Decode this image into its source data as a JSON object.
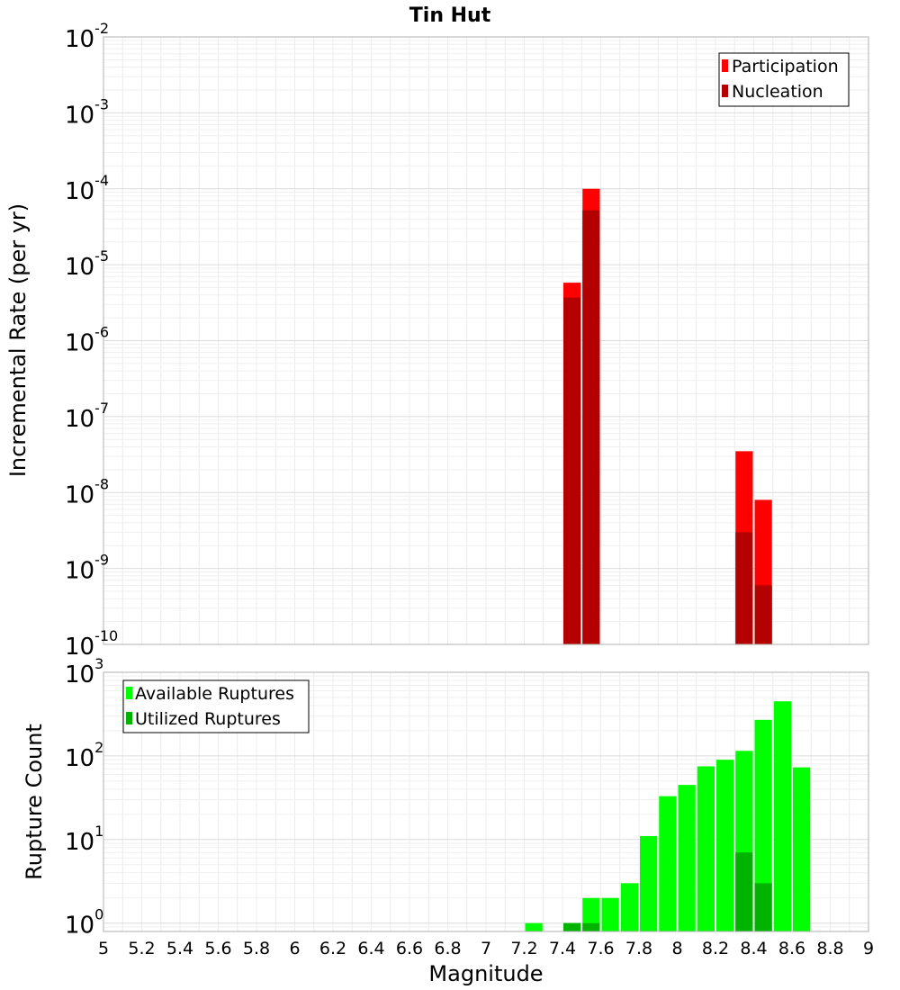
{
  "chart_data": [
    {
      "type": "bar",
      "title": "Tin Hut",
      "xlabel": "",
      "ylabel": "Incremental Rate (per yr)",
      "xlim": [
        5,
        9
      ],
      "ylim_exponent": [
        -10,
        -2
      ],
      "yscale": "log",
      "y_tick_base": "10",
      "y_tick_exponents": [
        "-10",
        "-9",
        "-8",
        "-7",
        "-6",
        "-5",
        "-4",
        "-3",
        "-2"
      ],
      "bar_width": 0.1,
      "grid": true,
      "legend_position": "top-right",
      "series": [
        {
          "name": "Participation",
          "color": "#ff0000",
          "points": [
            {
              "x": 7.45,
              "y": 5.8e-06
            },
            {
              "x": 7.55,
              "y": 0.0001
            },
            {
              "x": 8.35,
              "y": 3.5e-08
            },
            {
              "x": 8.45,
              "y": 8e-09
            }
          ]
        },
        {
          "name": "Nucleation",
          "color": "#b30000",
          "points": [
            {
              "x": 7.45,
              "y": 3.7e-06
            },
            {
              "x": 7.55,
              "y": 5.2e-05
            },
            {
              "x": 8.35,
              "y": 3e-09
            },
            {
              "x": 8.45,
              "y": 6e-10
            }
          ]
        }
      ]
    },
    {
      "type": "bar",
      "xlabel": "Magnitude",
      "ylabel": "Rupture Count",
      "xlim": [
        5,
        9
      ],
      "ylim_exponent": [
        -0.1,
        3
      ],
      "yscale": "log",
      "y_tick_base": "10",
      "y_tick_exponents": [
        "0",
        "1",
        "2",
        "3"
      ],
      "x_ticks": [
        "5",
        "5.2",
        "5.4",
        "5.6",
        "5.8",
        "6",
        "6.2",
        "6.4",
        "6.6",
        "6.8",
        "7",
        "7.2",
        "7.4",
        "7.6",
        "7.8",
        "8",
        "8.2",
        "8.4",
        "8.6",
        "8.8",
        "9"
      ],
      "bar_width": 0.1,
      "grid": true,
      "legend_position": "top-left",
      "series": [
        {
          "name": "Available Ruptures",
          "color": "#00ff00",
          "points": [
            {
              "x": 7.25,
              "y": 1
            },
            {
              "x": 7.45,
              "y": 1
            },
            {
              "x": 7.55,
              "y": 2
            },
            {
              "x": 7.65,
              "y": 2
            },
            {
              "x": 7.75,
              "y": 3
            },
            {
              "x": 7.85,
              "y": 11
            },
            {
              "x": 7.95,
              "y": 33
            },
            {
              "x": 8.05,
              "y": 45
            },
            {
              "x": 8.15,
              "y": 75
            },
            {
              "x": 8.25,
              "y": 90
            },
            {
              "x": 8.35,
              "y": 115
            },
            {
              "x": 8.45,
              "y": 270
            },
            {
              "x": 8.55,
              "y": 450
            },
            {
              "x": 8.65,
              "y": 73
            }
          ]
        },
        {
          "name": "Utilized Ruptures",
          "color": "#00b300",
          "points": [
            {
              "x": 7.45,
              "y": 1
            },
            {
              "x": 7.55,
              "y": 1
            },
            {
              "x": 8.35,
              "y": 7
            },
            {
              "x": 8.45,
              "y": 3
            }
          ]
        }
      ]
    }
  ]
}
